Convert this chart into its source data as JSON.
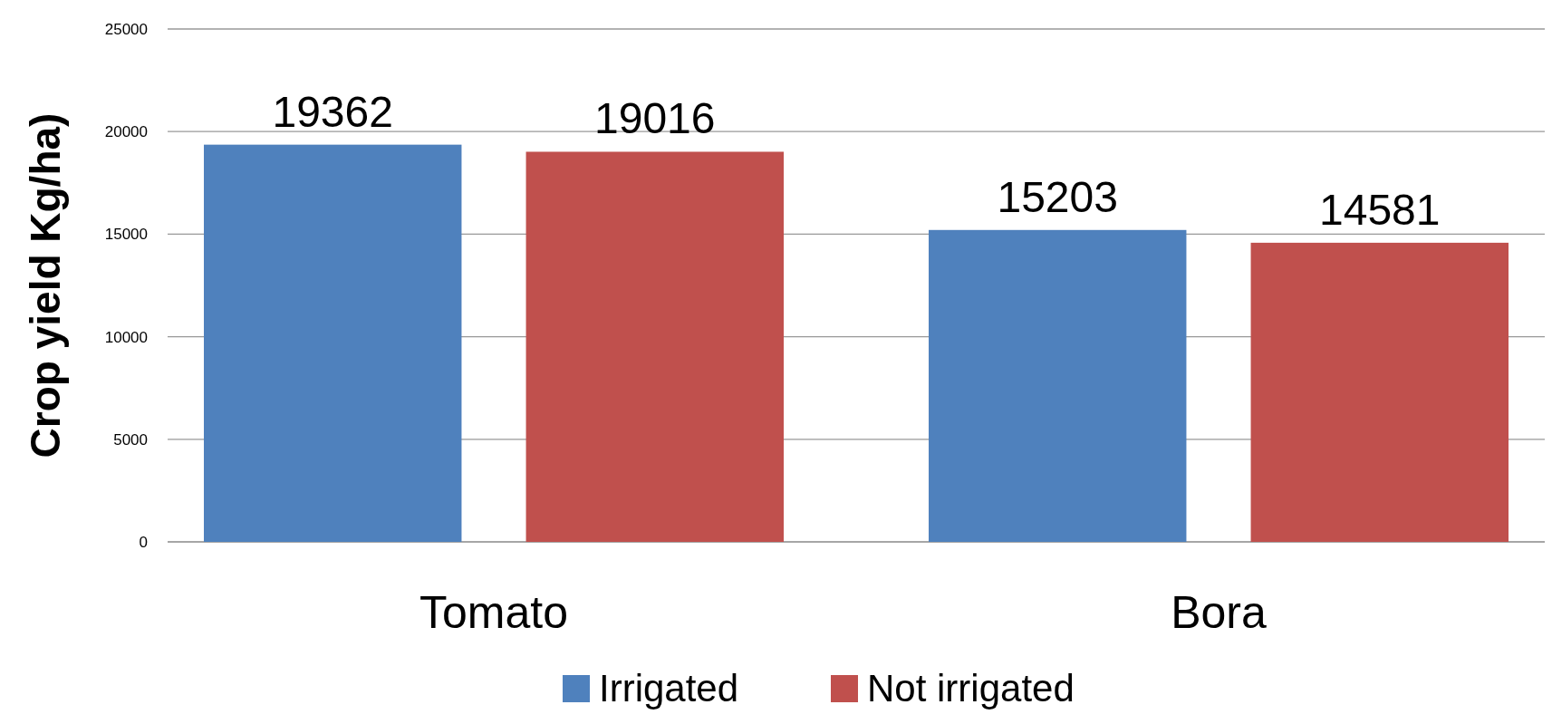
{
  "chart_data": {
    "type": "bar",
    "ylabel": "Crop yield Kg/ha)",
    "categories": [
      "Tomato",
      "Bora"
    ],
    "series": [
      {
        "name": "Irrigated",
        "color": "#4f81bd",
        "values": [
          19362,
          15203
        ]
      },
      {
        "name": "Not irrigated",
        "color": "#c0504d",
        "values": [
          19016,
          14581
        ]
      }
    ],
    "ylim": [
      0,
      25000
    ],
    "yticks": [
      0,
      5000,
      10000,
      15000,
      20000,
      25000
    ],
    "grid": "y",
    "legend": "bottom",
    "data_labels": true
  }
}
